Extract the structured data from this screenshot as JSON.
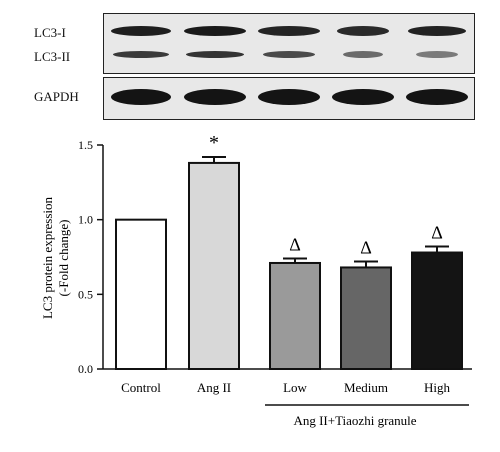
{
  "blot": {
    "labels": [
      "LC3-I",
      "LC3-II",
      "GAPDH"
    ],
    "lanes": 5
  },
  "chart_data": {
    "type": "bar",
    "categories": [
      "Control",
      "Ang II",
      "Low",
      "Medium",
      "High"
    ],
    "values": [
      1.0,
      1.38,
      0.71,
      0.68,
      0.78
    ],
    "errors": [
      0,
      0.04,
      0.03,
      0.04,
      0.04
    ],
    "markers": [
      "",
      "*",
      "Δ",
      "Δ",
      "Δ"
    ],
    "fills": [
      "#ffffff",
      "#d8d8d8",
      "#9a9a9a",
      "#666666",
      "#141414"
    ],
    "ylabel_line1": "LC3 protein expression",
    "ylabel_line2": "(-Fold change)",
    "yticks": [
      "0.0",
      "0.5",
      "1.0",
      "1.5"
    ],
    "ylim": [
      0,
      1.5
    ],
    "group_label": "Ang II+Tiaozhi granule",
    "grid": false
  }
}
